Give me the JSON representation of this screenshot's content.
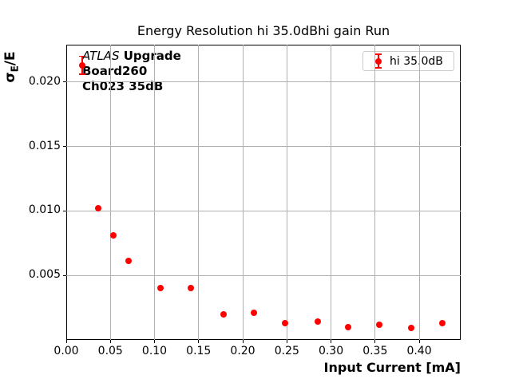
{
  "title": "Energy Resolution hi 35.0dBhi gain Run",
  "axes": {
    "xlabel": "Input Current [mA]",
    "ylabel_sigma": "σ",
    "ylabel_sub": "E",
    "ylabel_rest": "/E"
  },
  "annotation": {
    "experiment": "ATLAS",
    "tag": " Upgrade",
    "board": "Board260",
    "channel": "Ch023 35dB"
  },
  "legend": {
    "label": "hi 35.0dB"
  },
  "chart_data": {
    "type": "scatter",
    "title": "Energy Resolution hi 35.0dBhi gain Run",
    "xlabel": "Input Current [mA]",
    "ylabel": "σ_E/E",
    "xlim": [
      0,
      0.447
    ],
    "ylim": [
      0,
      0.0229
    ],
    "grid": true,
    "grid_color": "#b0b0b0",
    "legend_position": "upper right",
    "xticks": {
      "values": [
        0.0,
        0.05,
        0.1,
        0.15,
        0.2,
        0.25,
        0.3,
        0.35,
        0.4
      ],
      "labels": [
        "0.00",
        "0.05",
        "0.10",
        "0.15",
        "0.20",
        "0.25",
        "0.30",
        "0.35",
        "0.40"
      ]
    },
    "yticks": {
      "values": [
        0.005,
        0.01,
        0.015,
        0.02
      ],
      "labels": [
        "0.005",
        "0.010",
        "0.015",
        "0.020"
      ]
    },
    "series": [
      {
        "name": "hi 35.0dB",
        "color": "#ff0000",
        "marker": "circle",
        "x": [
          0.018,
          0.036,
          0.053,
          0.071,
          0.107,
          0.141,
          0.178,
          0.213,
          0.248,
          0.285,
          0.319,
          0.355,
          0.391,
          0.426
        ],
        "y": [
          0.0213,
          0.0102,
          0.0081,
          0.0061,
          0.004,
          0.004,
          0.002,
          0.0021,
          0.0013,
          0.0014,
          0.001,
          0.0012,
          0.0009,
          0.0013
        ],
        "yerr": [
          0.0007,
          0,
          0,
          0,
          0,
          0,
          0,
          0,
          0,
          0,
          0,
          0,
          0,
          0
        ]
      }
    ]
  }
}
